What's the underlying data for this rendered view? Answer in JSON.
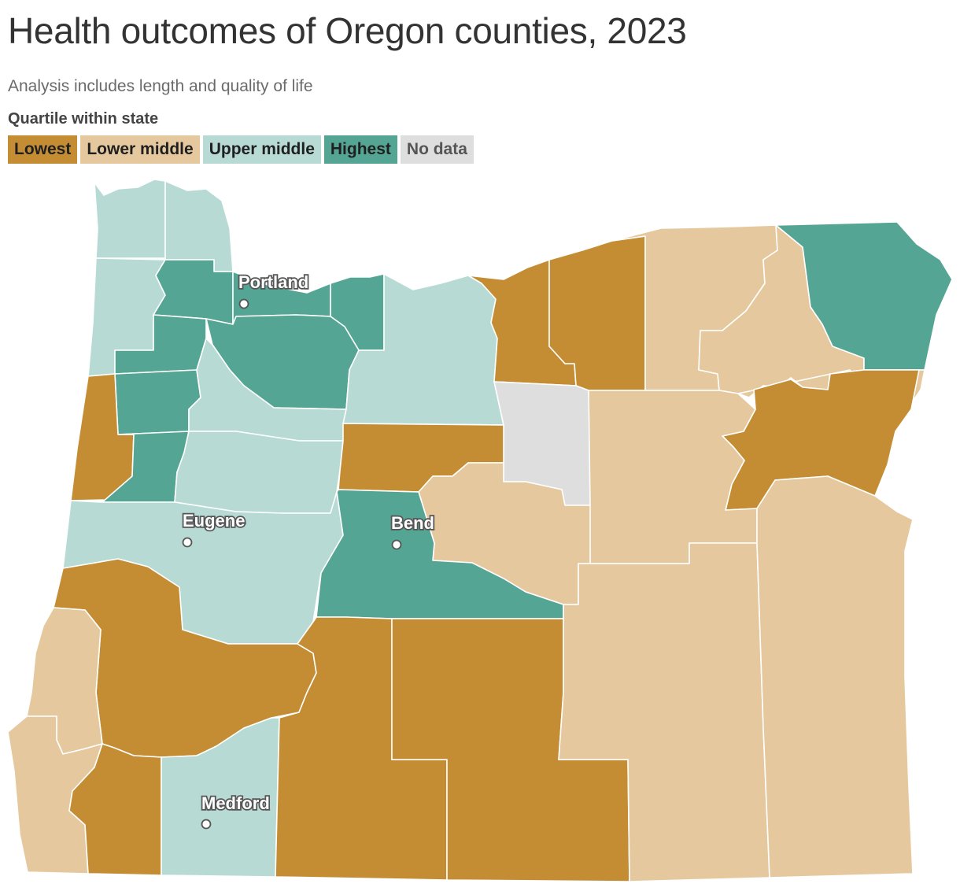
{
  "title": "Health outcomes of Oregon counties, 2023",
  "subtitle": "Analysis includes length and quality of life",
  "legend": {
    "title": "Quartile within state",
    "items": [
      {
        "key": "lowest",
        "label": "Lowest",
        "color": "#c48d34"
      },
      {
        "key": "lower_middle",
        "label": "Lower middle",
        "color": "#e5c89d"
      },
      {
        "key": "upper_middle",
        "label": "Upper middle",
        "color": "#b7dbd4"
      },
      {
        "key": "highest",
        "label": "Highest",
        "color": "#55a594"
      },
      {
        "key": "no_data",
        "label": "No data",
        "color": "#dedede"
      }
    ]
  },
  "cities": {
    "portland": "Portland",
    "eugene": "Eugene",
    "bend": "Bend",
    "medford": "Medford"
  }
}
